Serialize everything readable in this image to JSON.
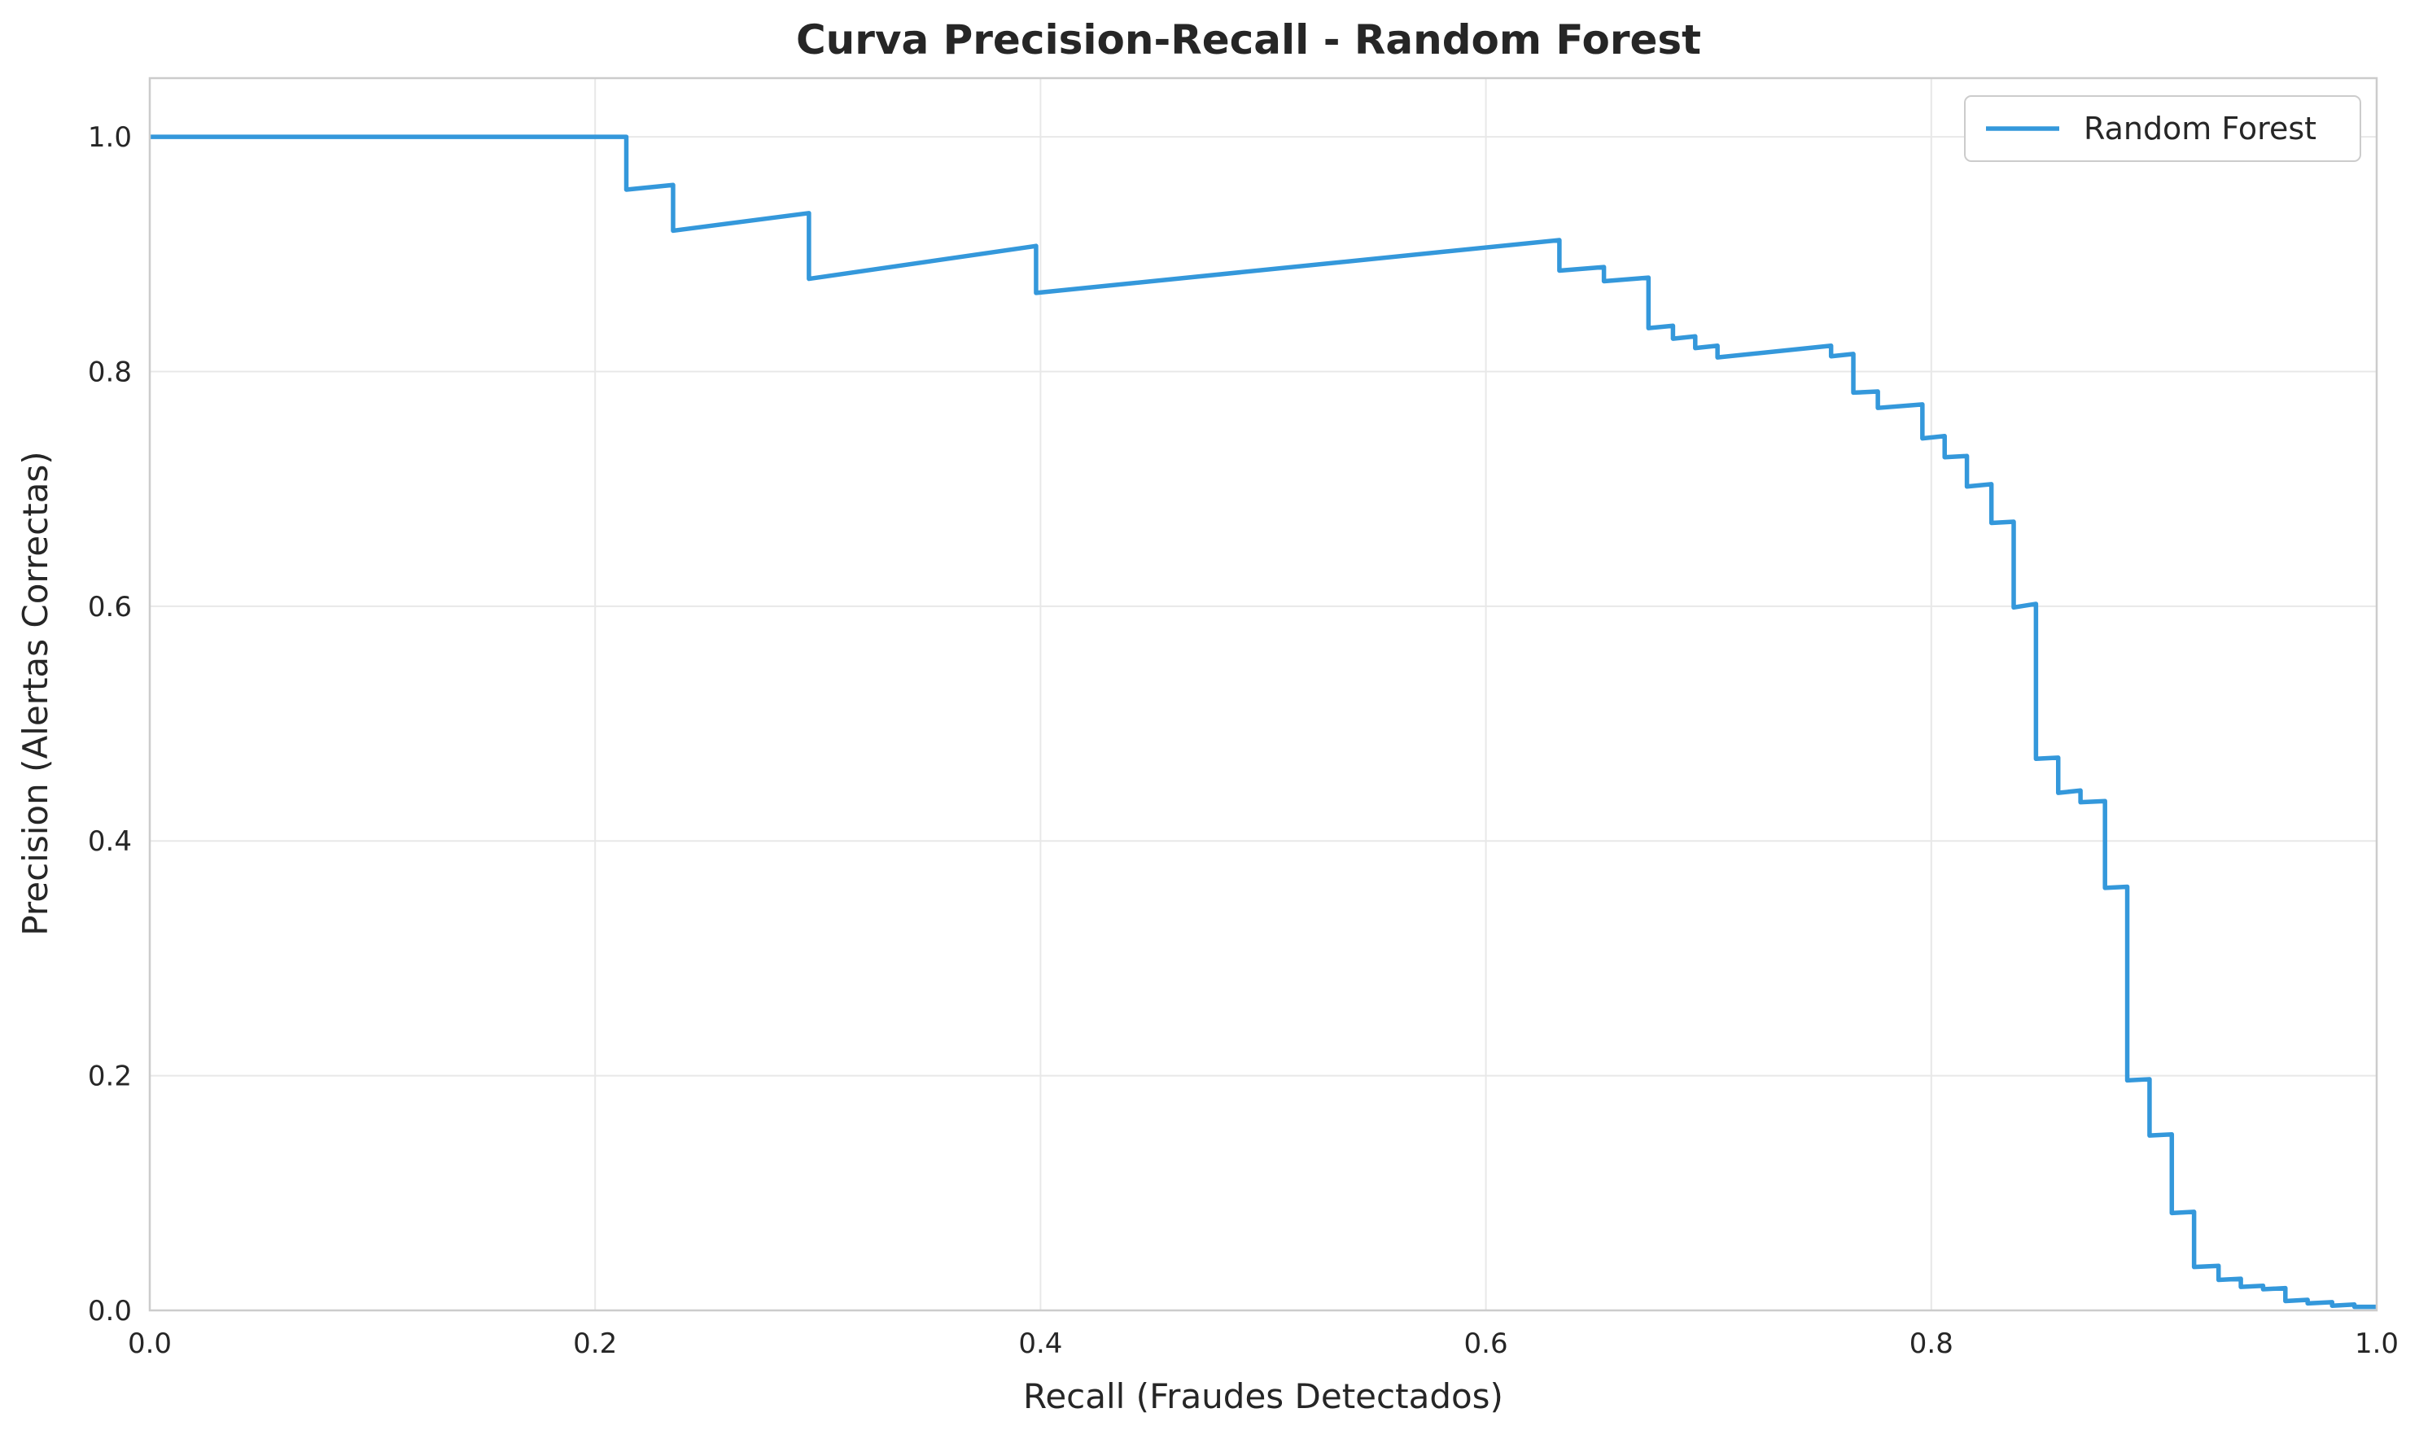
{
  "chart_data": {
    "type": "line",
    "title": "Curva Precision-Recall - Random Forest",
    "xlabel": "Recall (Fraudes Detectados)",
    "ylabel": "Precision (Alertas Correctas)",
    "xlim": [
      0,
      1
    ],
    "ylim": [
      0,
      1.05
    ],
    "xticks": [
      0.0,
      0.2,
      0.4,
      0.6,
      0.8,
      1.0
    ],
    "xtick_labels": [
      "0.0",
      "0.2",
      "0.4",
      "0.6",
      "0.8",
      "1.0"
    ],
    "yticks": [
      0.0,
      0.2,
      0.4,
      0.6,
      0.8,
      1.0
    ],
    "ytick_labels": [
      "0.0",
      "0.2",
      "0.4",
      "0.6",
      "0.8",
      "1.0"
    ],
    "grid": true,
    "legend_position": "top-right",
    "series": [
      {
        "name": "Random Forest",
        "color": "#3498db",
        "x": [
          0.0,
          0.214,
          0.214,
          0.235,
          0.235,
          0.296,
          0.296,
          0.398,
          0.398,
          0.633,
          0.633,
          0.653,
          0.653,
          0.673,
          0.673,
          0.684,
          0.684,
          0.694,
          0.694,
          0.704,
          0.704,
          0.755,
          0.755,
          0.765,
          0.765,
          0.776,
          0.776,
          0.796,
          0.796,
          0.806,
          0.806,
          0.816,
          0.816,
          0.827,
          0.827,
          0.837,
          0.837,
          0.847,
          0.847,
          0.857,
          0.857,
          0.867,
          0.867,
          0.878,
          0.878,
          0.888,
          0.888,
          0.898,
          0.898,
          0.908,
          0.908,
          0.918,
          0.918,
          0.929,
          0.929,
          0.939,
          0.939,
          0.949,
          0.949,
          0.959,
          0.959,
          0.969,
          0.969,
          0.98,
          0.98,
          0.99,
          0.99,
          1.0
        ],
        "y": [
          1.0,
          1.0,
          0.955,
          0.959,
          0.92,
          0.935,
          0.879,
          0.907,
          0.867,
          0.912,
          0.886,
          0.889,
          0.877,
          0.88,
          0.837,
          0.839,
          0.828,
          0.83,
          0.82,
          0.822,
          0.812,
          0.822,
          0.813,
          0.815,
          0.782,
          0.783,
          0.769,
          0.772,
          0.743,
          0.745,
          0.727,
          0.728,
          0.702,
          0.704,
          0.671,
          0.672,
          0.599,
          0.602,
          0.47,
          0.471,
          0.441,
          0.443,
          0.433,
          0.434,
          0.36,
          0.361,
          0.196,
          0.197,
          0.149,
          0.15,
          0.083,
          0.084,
          0.037,
          0.038,
          0.026,
          0.027,
          0.02,
          0.021,
          0.018,
          0.019,
          0.008,
          0.009,
          0.006,
          0.007,
          0.004,
          0.005,
          0.003,
          0.003
        ]
      }
    ]
  }
}
